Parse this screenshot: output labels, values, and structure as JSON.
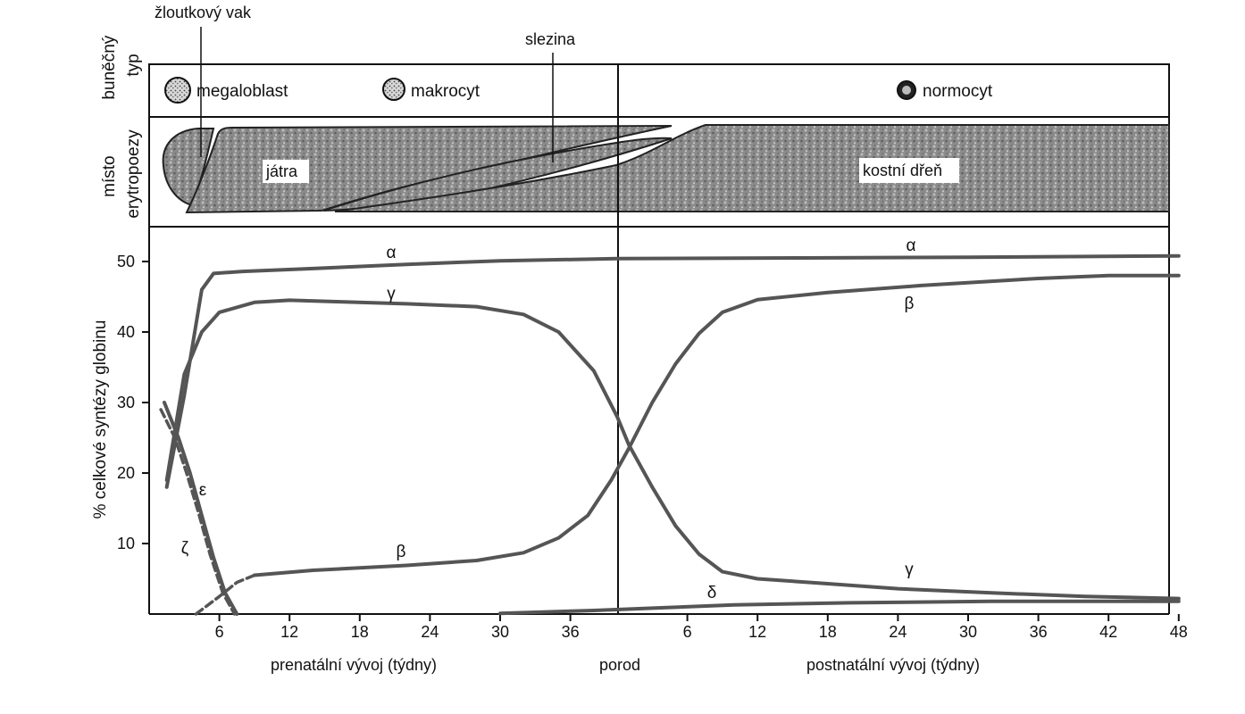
{
  "header": {
    "row_label_cell": "buněčný typ",
    "row_label_cell_parts": [
      "buněčný",
      "typ"
    ],
    "row_label_site_parts": [
      "místo",
      "erytropoezy"
    ],
    "cells": [
      "megaloblast",
      "makrocyt",
      "normocyt"
    ],
    "callout_yolk": "žloutkový vak",
    "callout_spleen": "slezina",
    "organ_liver": "játra",
    "organ_marrow": "kostní dřeň"
  },
  "colors": {
    "curve": "#555555",
    "tissue": "#7a7a7a",
    "ink": "#111111"
  },
  "chart_data": {
    "type": "line",
    "ylabel": "% celkové syntézy globinu",
    "ylim": [
      0,
      55
    ],
    "y_ticks": [
      "10",
      "20",
      "30",
      "40",
      "50"
    ],
    "x_ticks_prenatal": [
      "6",
      "12",
      "18",
      "24",
      "30",
      "36"
    ],
    "x_ticks_postnatal": [
      "6",
      "12",
      "18",
      "24",
      "30",
      "36",
      "42",
      "48"
    ],
    "xlabel_prenatal": "prenatální vývoj (týdny)",
    "xlabel_birth": "porod",
    "xlabel_postnatal": "postnatální vývoj (týdny)",
    "series": [
      {
        "name": "α",
        "labels": [
          "α",
          "α"
        ],
        "points": [
          [
            1.5,
            18
          ],
          [
            3,
            31
          ],
          [
            4.5,
            46
          ],
          [
            5.5,
            48.3
          ],
          [
            8,
            48.6
          ],
          [
            14,
            49.0
          ],
          [
            22,
            49.6
          ],
          [
            30,
            50.1
          ],
          [
            40,
            50.4
          ],
          [
            56,
            50.5
          ],
          [
            70,
            50.6
          ],
          [
            88,
            50.8
          ]
        ]
      },
      {
        "name": "γ",
        "labels": [
          "γ",
          "γ"
        ],
        "points": [
          [
            1.5,
            19
          ],
          [
            3,
            34
          ],
          [
            4.5,
            40
          ],
          [
            6,
            42.8
          ],
          [
            9,
            44.2
          ],
          [
            12,
            44.5
          ],
          [
            16,
            44.3
          ],
          [
            22,
            44.0
          ],
          [
            28,
            43.6
          ],
          [
            32,
            42.5
          ],
          [
            35,
            40.0
          ],
          [
            38,
            34.5
          ],
          [
            40,
            28
          ],
          [
            41,
            24
          ],
          [
            43,
            18
          ],
          [
            45,
            12.5
          ],
          [
            47,
            8.5
          ],
          [
            49,
            6.0
          ],
          [
            52,
            5.0
          ],
          [
            58,
            4.3
          ],
          [
            64,
            3.6
          ],
          [
            72,
            3.0
          ],
          [
            80,
            2.5
          ],
          [
            88,
            2.2
          ]
        ]
      },
      {
        "name": "β",
        "labels": [
          "β",
          "β"
        ],
        "points": [
          [
            9,
            5.5
          ],
          [
            14,
            6.2
          ],
          [
            22,
            6.9
          ],
          [
            28,
            7.6
          ],
          [
            32,
            8.7
          ],
          [
            35,
            10.8
          ],
          [
            37.5,
            14.0
          ],
          [
            39.5,
            19.0
          ],
          [
            41,
            23.5
          ],
          [
            43,
            30.0
          ],
          [
            45,
            35.5
          ],
          [
            47,
            39.8
          ],
          [
            49,
            42.8
          ],
          [
            52,
            44.6
          ],
          [
            58,
            45.6
          ],
          [
            66,
            46.6
          ],
          [
            76,
            47.6
          ],
          [
            82,
            48.0
          ],
          [
            88,
            48.0
          ]
        ]
      },
      {
        "name": "δ",
        "labels": [
          "δ"
        ],
        "points": [
          [
            30,
            0.1
          ],
          [
            38,
            0.5
          ],
          [
            44,
            0.9
          ],
          [
            50,
            1.3
          ],
          [
            60,
            1.6
          ],
          [
            72,
            1.8
          ],
          [
            88,
            1.8
          ]
        ]
      },
      {
        "name": "ε",
        "labels": [
          "ε"
        ],
        "points": [
          [
            1.3,
            30
          ],
          [
            2.5,
            25
          ],
          [
            3.5,
            20
          ],
          [
            4.5,
            14
          ],
          [
            5.5,
            8
          ],
          [
            6.5,
            3
          ],
          [
            7.5,
            0
          ]
        ]
      },
      {
        "name": "ζ",
        "labels": [
          "ζ"
        ],
        "points": [
          [
            1.0,
            29
          ],
          [
            2.2,
            25
          ],
          [
            3.2,
            20
          ],
          [
            4.2,
            14.5
          ],
          [
            5.2,
            8.5
          ],
          [
            6.3,
            3
          ],
          [
            7.3,
            0
          ]
        ]
      },
      {
        "name": "β (časná)",
        "points": [
          [
            4,
            0
          ],
          [
            6,
            2.5
          ],
          [
            7.5,
            4.5
          ],
          [
            9,
            5.5
          ]
        ]
      }
    ]
  }
}
